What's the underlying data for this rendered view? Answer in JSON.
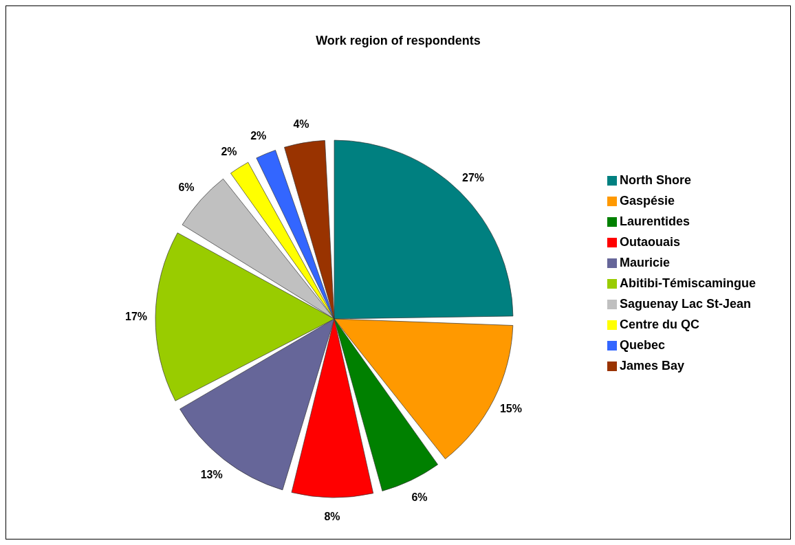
{
  "chart_data": {
    "type": "pie",
    "title": "Work region of respondents",
    "categories": [
      "North Shore",
      "Gaspésie",
      "Laurentides",
      "Outaouais",
      "Mauricie",
      "Abitibi-Témiscamingue",
      "Saguenay Lac St-Jean",
      "Centre du QC",
      "Quebec",
      "James Bay"
    ],
    "values": [
      27,
      15,
      6,
      8,
      13,
      17,
      6,
      2,
      2,
      4
    ],
    "value_labels": [
      "27%",
      "15%",
      "6%",
      "8%",
      "13%",
      "17%",
      "6%",
      "2%",
      "2%",
      "4%"
    ],
    "colors": [
      "#008080",
      "#ff9900",
      "#008000",
      "#ff0000",
      "#666699",
      "#99cc00",
      "#c0c0c0",
      "#ffff00",
      "#3366ff",
      "#993300"
    ],
    "legend": "right"
  }
}
